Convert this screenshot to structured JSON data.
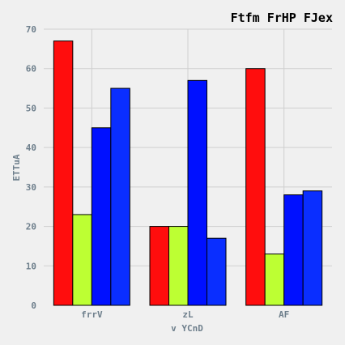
{
  "chart_data": {
    "type": "bar",
    "title": "Ftfm FrHP FJex",
    "xlabel": "v YCnD",
    "ylabel": "ETTuA",
    "categories": [
      "frrV",
      "zL",
      "AF"
    ],
    "ylim": [
      0,
      70
    ],
    "yticks": [
      0,
      10,
      20,
      30,
      40,
      50,
      60,
      70
    ],
    "grid": true,
    "series": [
      {
        "values": [
          67,
          20,
          60
        ],
        "color": "#ff0d0d"
      },
      {
        "values": [
          23,
          20,
          13
        ],
        "color": "#bdff33"
      },
      {
        "values": [
          45,
          57,
          28
        ],
        "color": "#0010ff"
      },
      {
        "values": [
          55,
          17,
          29
        ],
        "color": "#0a2eff"
      }
    ]
  }
}
